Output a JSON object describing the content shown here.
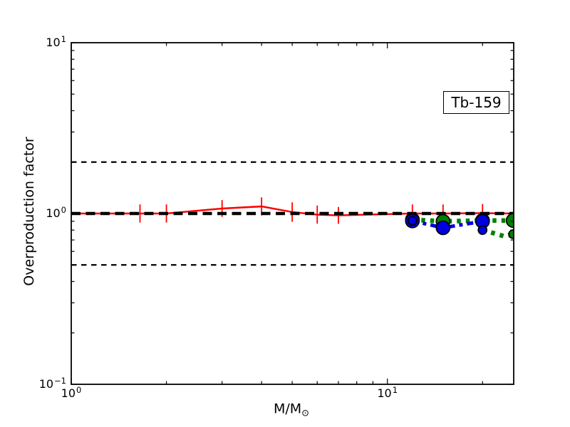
{
  "chart_data": {
    "type": "line",
    "annotation": "Tb-159",
    "ylabel": "Overproduction factor",
    "xlabel_main": "M/M",
    "xlabel_sub": "⊙",
    "xscale": "log",
    "yscale": "log",
    "xlim": [
      1.0,
      25.1
    ],
    "ylim": [
      0.1,
      10.0
    ],
    "grid": false,
    "background": "#ffffff",
    "axis_color": "#000000",
    "x_major_ticks": [
      {
        "value": 1,
        "base": "10",
        "exp": "0"
      },
      {
        "value": 10,
        "base": "10",
        "exp": "1"
      }
    ],
    "y_major_ticks": [
      {
        "value": 0.1,
        "base": "10",
        "exp": "−1"
      },
      {
        "value": 1,
        "base": "10",
        "exp": "0"
      },
      {
        "value": 10,
        "base": "10",
        "exp": "1"
      }
    ],
    "reference_lines": [
      {
        "y": 2.0,
        "color": "#000000",
        "linewidth": 2.2,
        "dash": "7.5 6.5"
      },
      {
        "y": 1.0,
        "color": "#000000",
        "linewidth": 4.4,
        "dash": "13 7.5"
      },
      {
        "y": 0.5,
        "color": "#000000",
        "linewidth": 2.2,
        "dash": "7.5 6.5"
      }
    ],
    "series": [
      {
        "name": "red-solid-errorbars",
        "color": "#ff0000",
        "linestyle": "solid",
        "linewidth": 2.5,
        "marker": "none",
        "x": [
          1.0,
          1.65,
          2,
          3,
          4,
          5,
          6,
          7,
          12,
          15,
          20,
          25
        ],
        "y": [
          1.0,
          1.0,
          1.0,
          1.07,
          1.1,
          1.02,
          0.985,
          0.975,
          1.0,
          1.0,
          1.005,
          1.0
        ],
        "yerr_factor": [
          null,
          1.13,
          1.13,
          1.12,
          1.13,
          1.14,
          1.13,
          1.12,
          1.13,
          1.13,
          1.13,
          null
        ]
      },
      {
        "name": "green-dotted-thick",
        "color": "#008000",
        "linestyle": "dotted",
        "linewidth": 6.5,
        "marker": "circle",
        "marker_size": 9.5,
        "x": [
          12,
          15,
          20,
          25
        ],
        "y": [
          0.92,
          0.9,
          0.91,
          0.91
        ]
      },
      {
        "name": "green-dotted-branch",
        "color": "#008000",
        "linestyle": "dotted",
        "linewidth": 6.5,
        "marker": "circle",
        "marker_size": 6,
        "markers_at": [
          25
        ],
        "x": [
          20,
          23.5,
          25
        ],
        "y": [
          0.8,
          0.735,
          0.757
        ]
      },
      {
        "name": "blue-dashdot-thick",
        "color": "#0000e0",
        "linestyle": "dashdot",
        "linewidth": 5,
        "marker": "circle",
        "marker_size": 9.5,
        "x": [
          12,
          15,
          20
        ],
        "y": [
          0.905,
          0.825,
          0.9
        ]
      },
      {
        "name": "blue-small-markers",
        "color": "#0000e0",
        "linestyle": "none",
        "linewidth": 0,
        "marker": "circle",
        "marker_size": 6,
        "x": [
          12,
          20
        ],
        "y": [
          0.905,
          0.8
        ]
      }
    ]
  }
}
